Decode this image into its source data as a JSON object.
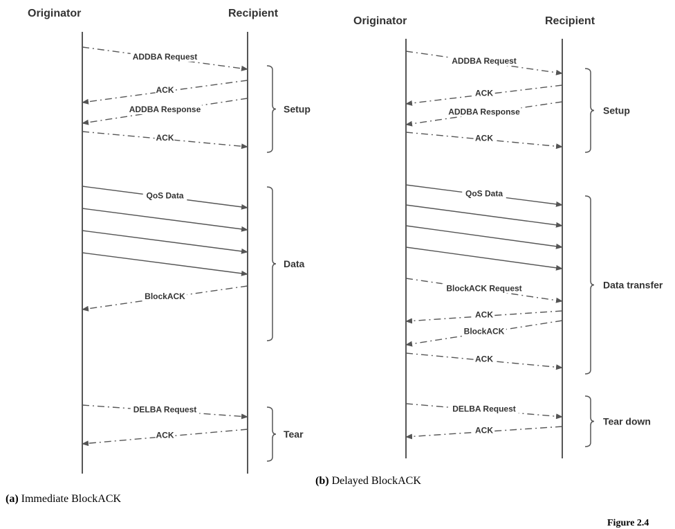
{
  "diagram_a": {
    "originator_label": "Originator",
    "recipient_label": "Recipient",
    "messages": [
      {
        "label": "ADDBA Request",
        "dir": "right",
        "style": "dashdot"
      },
      {
        "label": "ACK",
        "dir": "left",
        "style": "dashdot"
      },
      {
        "label": "ADDBA Response",
        "dir": "left",
        "style": "dashdot"
      },
      {
        "label": "ACK",
        "dir": "right",
        "style": "dashdot"
      },
      {
        "label": "QoS Data",
        "dir": "right",
        "style": "solid"
      },
      {
        "label": "",
        "dir": "right",
        "style": "solid"
      },
      {
        "label": "",
        "dir": "right",
        "style": "solid"
      },
      {
        "label": "",
        "dir": "right",
        "style": "solid"
      },
      {
        "label": "BlockACK",
        "dir": "left",
        "style": "dashdot"
      },
      {
        "label": "DELBA Request",
        "dir": "right",
        "style": "dashdot"
      },
      {
        "label": "ACK",
        "dir": "left",
        "style": "dashdot"
      }
    ],
    "phases": [
      {
        "label": "Setup"
      },
      {
        "label": "Data"
      },
      {
        "label": "Tear"
      }
    ]
  },
  "diagram_b": {
    "originator_label": "Originator",
    "recipient_label": "Recipient",
    "messages": [
      {
        "label": "ADDBA Request",
        "dir": "right",
        "style": "dashdot"
      },
      {
        "label": "ACK",
        "dir": "left",
        "style": "dashdot"
      },
      {
        "label": "ADDBA Response",
        "dir": "left",
        "style": "dashdot"
      },
      {
        "label": "ACK",
        "dir": "right",
        "style": "dashdot"
      },
      {
        "label": "QoS Data",
        "dir": "right",
        "style": "solid"
      },
      {
        "label": "",
        "dir": "right",
        "style": "solid"
      },
      {
        "label": "",
        "dir": "right",
        "style": "solid"
      },
      {
        "label": "",
        "dir": "right",
        "style": "solid"
      },
      {
        "label": "BlockACK Request",
        "dir": "right",
        "style": "dashdot"
      },
      {
        "label": "ACK",
        "dir": "left",
        "style": "dashdot"
      },
      {
        "label": "BlockACK",
        "dir": "left",
        "style": "dashdot"
      },
      {
        "label": "ACK",
        "dir": "right",
        "style": "dashdot"
      },
      {
        "label": "DELBA Request",
        "dir": "right",
        "style": "dashdot"
      },
      {
        "label": "ACK",
        "dir": "left",
        "style": "dashdot"
      }
    ],
    "phases": [
      {
        "label": "Setup"
      },
      {
        "label": "Data transfer"
      },
      {
        "label": "Tear down"
      }
    ]
  },
  "captions": {
    "a_tag": "(a)",
    "a_text": "Immediate BlockACK",
    "b_tag": "(b)",
    "b_text": "Delayed BlockACK",
    "figure": "Figure 2.4"
  }
}
